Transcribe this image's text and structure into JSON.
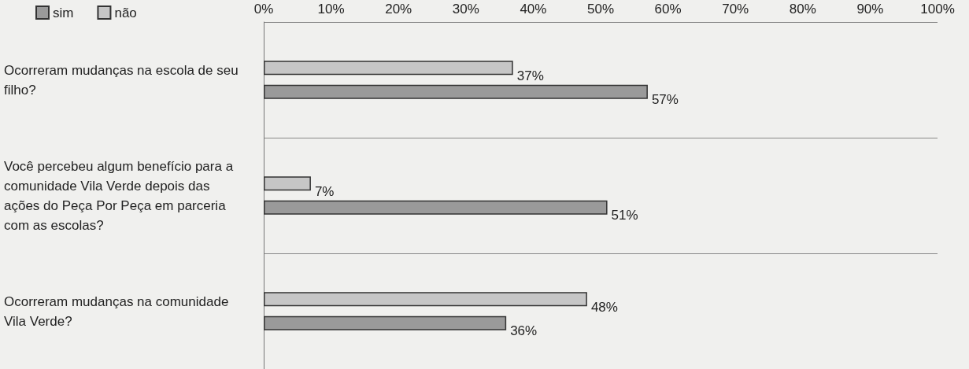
{
  "chart_data": {
    "type": "bar",
    "orientation": "horizontal",
    "categories": [
      "Ocorreram mudanças na escola de seu filho?",
      "Você percebeu algum benefício para a comunidade Vila Verde depois das ações do Peça Por Peça em parceria com as escolas?",
      "Ocorreram mudanças na comunidade Vila Verde?"
    ],
    "series": [
      {
        "name": "não",
        "color": "#c6c6c6",
        "values": [
          37,
          7,
          48
        ],
        "value_labels": [
          "37%",
          "7%",
          "48%"
        ]
      },
      {
        "name": "sim",
        "color": "#9a9a9a",
        "values": [
          57,
          51,
          36
        ],
        "value_labels": [
          "57%",
          "51%",
          "36%"
        ]
      }
    ],
    "xlim": [
      0,
      100
    ],
    "xticks": [
      {
        "value": 0,
        "label": "0%"
      },
      {
        "value": 10,
        "label": "10%"
      },
      {
        "value": 20,
        "label": "20%"
      },
      {
        "value": 30,
        "label": "30%"
      },
      {
        "value": 40,
        "label": "40%"
      },
      {
        "value": 50,
        "label": "50%"
      },
      {
        "value": 60,
        "label": "60%"
      },
      {
        "value": 70,
        "label": "70%"
      },
      {
        "value": 80,
        "label": "80%"
      },
      {
        "value": 90,
        "label": "90%"
      },
      {
        "value": 100,
        "label": "100%"
      }
    ],
    "grid": "y",
    "legend": "top left"
  }
}
